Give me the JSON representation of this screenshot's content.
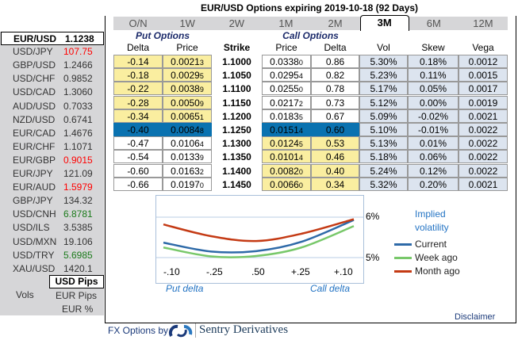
{
  "title": "EUR/USD Options expiring 2019-10-18 (92 Days)",
  "tabs": [
    "O/N",
    "1W",
    "2W",
    "1M",
    "2M",
    "3M",
    "6M",
    "12M"
  ],
  "active_tab": "3M",
  "groups": {
    "put": "Put Options",
    "call": "Call Options"
  },
  "headers": [
    "Delta",
    "Price",
    "Strike",
    "Price",
    "Delta",
    "Vol",
    "Skew",
    "Vega"
  ],
  "rows": [
    [
      "-0.14",
      "0.0021",
      "3",
      "1.1000",
      "0.0338",
      "0",
      "0.86",
      "5.30%",
      "0.18%",
      "0.0012"
    ],
    [
      "-0.18",
      "0.0029",
      "5",
      "1.1050",
      "0.0295",
      "4",
      "0.82",
      "5.23%",
      "0.11%",
      "0.0015"
    ],
    [
      "-0.22",
      "0.0038",
      "9",
      "1.1100",
      "0.0255",
      "0",
      "0.78",
      "5.17%",
      "0.05%",
      "0.0017"
    ],
    [
      "-0.28",
      "0.0050",
      "9",
      "1.1150",
      "0.0217",
      "2",
      "0.73",
      "5.12%",
      "0.00%",
      "0.0019"
    ],
    [
      "-0.34",
      "0.0065",
      "1",
      "1.1200",
      "0.0183",
      "5",
      "0.67",
      "5.09%",
      "-0.02%",
      "0.0021"
    ],
    [
      "-0.40",
      "0.0084",
      "8",
      "1.1250",
      "0.0151",
      "4",
      "0.60",
      "5.10%",
      "-0.01%",
      "0.0022"
    ],
    [
      "-0.47",
      "0.0106",
      "4",
      "1.1300",
      "0.0124",
      "5",
      "0.53",
      "5.13%",
      "0.01%",
      "0.0022"
    ],
    [
      "-0.54",
      "0.0133",
      "9",
      "1.1350",
      "0.0101",
      "4",
      "0.46",
      "5.18%",
      "0.06%",
      "0.0022"
    ],
    [
      "-0.60",
      "0.0163",
      "2",
      "1.1400",
      "0.0082",
      "0",
      "0.40",
      "5.24%",
      "0.12%",
      "0.0022"
    ],
    [
      "-0.66",
      "0.0197",
      "0",
      "1.1450",
      "0.0066",
      "0",
      "0.34",
      "5.32%",
      "0.20%",
      "0.0021"
    ]
  ],
  "atm_row": 5,
  "pairs": [
    {
      "name": "EUR/USD",
      "value": "1.1238",
      "selected": true
    },
    {
      "name": "USD/JPY",
      "value": "107.75",
      "color": "red"
    },
    {
      "name": "GBP/USD",
      "value": "1.2466"
    },
    {
      "name": "USD/CHF",
      "value": "0.9852"
    },
    {
      "name": "USD/CAD",
      "value": "1.3060"
    },
    {
      "name": "AUD/USD",
      "value": "0.7033"
    },
    {
      "name": "NZD/USD",
      "value": "0.6741"
    },
    {
      "name": "EUR/CAD",
      "value": "1.4676"
    },
    {
      "name": "EUR/CHF",
      "value": "1.1071"
    },
    {
      "name": "EUR/GBP",
      "value": "0.9015",
      "color": "red"
    },
    {
      "name": "EUR/JPY",
      "value": "121.09"
    },
    {
      "name": "EUR/AUD",
      "value": "1.5979",
      "color": "red"
    },
    {
      "name": "GBP/JPY",
      "value": "134.32"
    },
    {
      "name": "USD/CNH",
      "value": "6.8781",
      "color": "green"
    },
    {
      "name": "USD/ILS",
      "value": "3.5385"
    },
    {
      "name": "USD/MXN",
      "value": "19.106"
    },
    {
      "name": "USD/TRY",
      "value": "5.6985",
      "color": "green"
    },
    {
      "name": "XAU/USD",
      "value": "1420.1"
    }
  ],
  "vols": {
    "label": "Vols",
    "options": [
      "USD Pips",
      "EUR Pips",
      "EUR %"
    ],
    "selected": "USD Pips"
  },
  "chart_data": {
    "type": "line",
    "categories": [
      "-.10",
      "-.25",
      ".50",
      "+.25",
      "+.10"
    ],
    "y_ticks": [
      "6%",
      "5%"
    ],
    "ylim": [
      5,
      6
    ],
    "xlabel_left": "Put delta",
    "xlabel_right": "Call delta",
    "legend_title": "Implied volatility",
    "series": [
      {
        "name": "Current",
        "color": "#2e6aa8",
        "values": [
          5.37,
          5.15,
          5.16,
          5.39,
          5.93
        ]
      },
      {
        "name": "Week ago",
        "color": "#78c86a",
        "values": [
          5.25,
          5.03,
          5.04,
          5.25,
          5.78
        ]
      },
      {
        "name": "Month ago",
        "color": "#c43a14",
        "values": [
          5.82,
          5.53,
          5.41,
          5.59,
          5.95
        ]
      }
    ]
  },
  "footer": {
    "disclaimer": "Disclaimer",
    "brand_prefix": "FX Options by",
    "brand": "Sentry Derivatives"
  }
}
